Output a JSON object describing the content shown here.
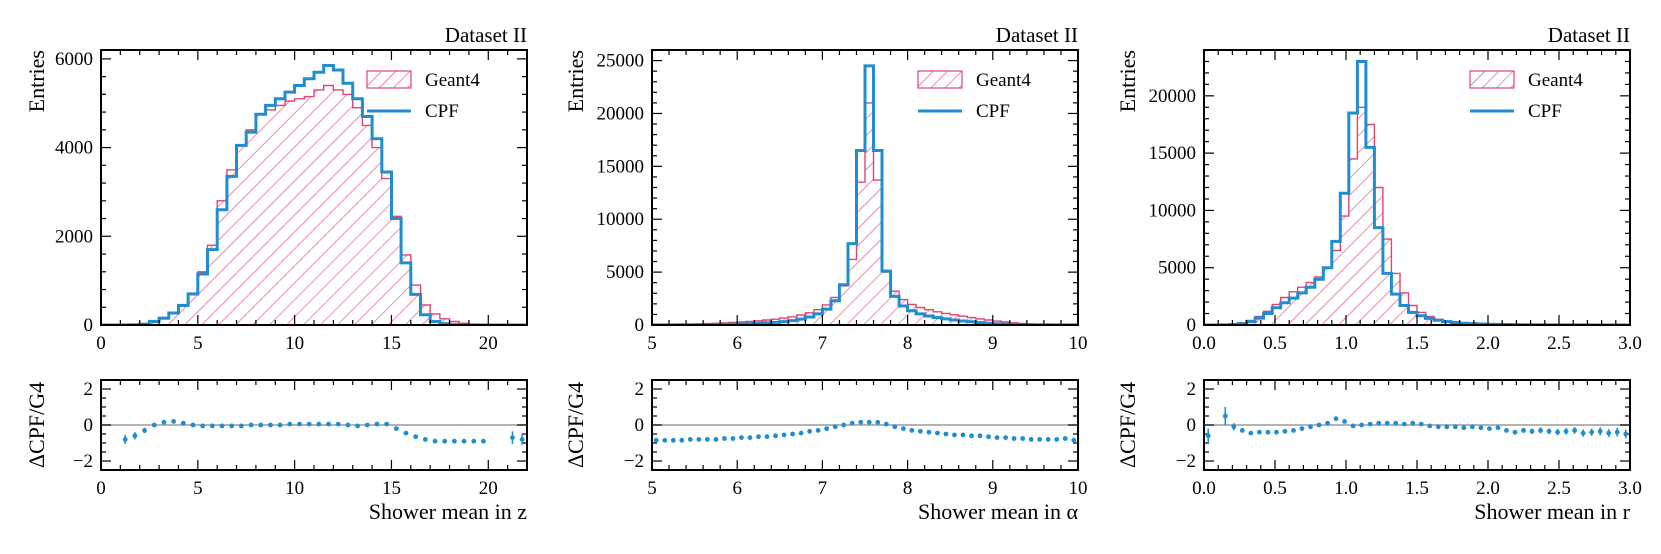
{
  "figure": {
    "legend_geant4": "Geant4",
    "legend_cpf": "CPF",
    "colors": {
      "geant4": "#e0456e",
      "cpf": "#1f8dd0",
      "reference_line": "#9a9a9a",
      "axes": "#000000"
    }
  },
  "chart_data": [
    {
      "type": "histogram-with-ratio",
      "title": "Dataset II",
      "xlabel": "Shower mean in z",
      "ylabel": "Entries",
      "ratio_ylabel": "ΔCPF/G4",
      "xlim": [
        0,
        22
      ],
      "ylim": [
        0,
        6200
      ],
      "ratio_ylim": [
        -2.5,
        2.5
      ],
      "xticks": [
        0,
        5,
        10,
        15,
        20
      ],
      "xtick_labels": [
        "0",
        "5",
        "10",
        "15",
        "20"
      ],
      "yticks": [
        0,
        2000,
        4000,
        6000
      ],
      "ytick_labels": [
        "0",
        "2000",
        "4000",
        "6000"
      ],
      "ratio_yticks": [
        -2,
        0,
        2
      ],
      "ratio_ytick_labels": [
        "−2",
        "0",
        "2"
      ],
      "bin_edges": [
        0,
        0.5,
        1,
        1.5,
        2,
        2.5,
        3,
        3.5,
        4,
        4.5,
        5,
        5.5,
        6,
        6.5,
        7,
        7.5,
        8,
        8.5,
        9,
        9.5,
        10,
        10.5,
        11,
        11.5,
        12,
        12.5,
        13,
        13.5,
        14,
        14.5,
        15,
        15.5,
        16,
        16.5,
        17,
        17.5,
        18,
        18.5,
        19,
        19.5,
        20,
        20.5,
        21,
        21.5,
        22
      ],
      "geant4": [
        0,
        0,
        5,
        10,
        30,
        100,
        170,
        280,
        460,
        720,
        1200,
        1800,
        2800,
        3500,
        4050,
        4400,
        4750,
        4850,
        4950,
        5050,
        5100,
        5150,
        5300,
        5400,
        5300,
        5200,
        4900,
        4500,
        4000,
        3300,
        2450,
        1580,
        900,
        450,
        250,
        140,
        80,
        40,
        20,
        8,
        3,
        0,
        0,
        0
      ],
      "cpf": [
        0,
        0,
        0,
        5,
        20,
        80,
        150,
        270,
        440,
        700,
        1150,
        1700,
        2600,
        3350,
        4050,
        4350,
        4750,
        4950,
        5100,
        5250,
        5400,
        5550,
        5700,
        5850,
        5750,
        5450,
        5100,
        4700,
        4200,
        3450,
        2400,
        1400,
        690,
        230,
        80,
        30,
        10,
        3,
        1,
        0,
        0,
        0,
        0,
        0
      ],
      "ratio": {
        "x": [
          1.25,
          1.75,
          2.25,
          2.75,
          3.25,
          3.75,
          4.25,
          4.75,
          5.25,
          5.75,
          6.25,
          6.75,
          7.25,
          7.75,
          8.25,
          8.75,
          9.25,
          9.75,
          10.25,
          10.75,
          11.25,
          11.75,
          12.25,
          12.75,
          13.25,
          13.75,
          14.25,
          14.75,
          15.25,
          15.75,
          16.25,
          16.75,
          17.25,
          17.75,
          18.25,
          18.75,
          19.25,
          19.75,
          21.25,
          21.75
        ],
        "y": [
          -0.8,
          -0.6,
          -0.3,
          0.0,
          0.15,
          0.2,
          0.1,
          0.0,
          -0.05,
          -0.05,
          -0.05,
          -0.05,
          -0.05,
          0.0,
          0.0,
          0.0,
          0.0,
          0.05,
          0.05,
          0.05,
          0.05,
          0.05,
          0.05,
          0.0,
          -0.05,
          0.0,
          0.05,
          0.05,
          -0.2,
          -0.45,
          -0.65,
          -0.8,
          -0.9,
          -0.9,
          -0.9,
          -0.9,
          -0.9,
          -0.9,
          -0.7,
          -0.8
        ],
        "err": [
          0.25,
          0.2,
          0.15,
          0.1,
          0.08,
          0.06,
          0.05,
          0.04,
          0.03,
          0.03,
          0.03,
          0.03,
          0.03,
          0.03,
          0.03,
          0.03,
          0.03,
          0.03,
          0.03,
          0.03,
          0.03,
          0.03,
          0.03,
          0.03,
          0.03,
          0.03,
          0.03,
          0.03,
          0.04,
          0.05,
          0.06,
          0.07,
          0.08,
          0.08,
          0.09,
          0.1,
          0.1,
          0.1,
          0.35,
          0.3
        ]
      }
    },
    {
      "type": "histogram-with-ratio",
      "title": "Dataset II",
      "xlabel": "Shower mean in α",
      "ylabel": "Entries",
      "ratio_ylabel": "ΔCPF/G4",
      "xlim": [
        5,
        10
      ],
      "ylim": [
        0,
        26000
      ],
      "ratio_ylim": [
        -2.5,
        2.5
      ],
      "xticks": [
        5,
        6,
        7,
        8,
        9,
        10
      ],
      "xtick_labels": [
        "5",
        "6",
        "7",
        "8",
        "9",
        "10"
      ],
      "yticks": [
        0,
        5000,
        10000,
        15000,
        20000,
        25000
      ],
      "ytick_labels": [
        "0",
        "5000",
        "10000",
        "15000",
        "20000",
        "25000"
      ],
      "ratio_yticks": [
        -2,
        0,
        2
      ],
      "ratio_ytick_labels": [
        "−2",
        "0",
        "2"
      ],
      "bin_edges": [
        5.0,
        5.1,
        5.2,
        5.3,
        5.4,
        5.5,
        5.6,
        5.7,
        5.8,
        5.9,
        6.0,
        6.1,
        6.2,
        6.3,
        6.4,
        6.5,
        6.6,
        6.7,
        6.8,
        6.9,
        7.0,
        7.1,
        7.2,
        7.3,
        7.4,
        7.5,
        7.6,
        7.7,
        7.8,
        7.9,
        8.0,
        8.1,
        8.2,
        8.3,
        8.4,
        8.5,
        8.6,
        8.7,
        8.8,
        8.9,
        9.0,
        9.1,
        9.2,
        9.3,
        9.4,
        9.5,
        9.6,
        9.7,
        9.8,
        9.9,
        10.0
      ],
      "geant4": [
        20,
        30,
        40,
        60,
        80,
        100,
        130,
        160,
        200,
        240,
        290,
        340,
        400,
        470,
        550,
        650,
        780,
        950,
        1150,
        1450,
        1900,
        2600,
        3700,
        6200,
        13500,
        21000,
        13700,
        5000,
        3200,
        2400,
        1950,
        1650,
        1450,
        1250,
        1100,
        960,
        830,
        700,
        580,
        470,
        370,
        280,
        210,
        150,
        100,
        70,
        45,
        30,
        20,
        10
      ],
      "cpf": [
        5,
        5,
        10,
        15,
        20,
        25,
        35,
        45,
        60,
        80,
        100,
        130,
        160,
        200,
        250,
        320,
        420,
        560,
        760,
        1050,
        1500,
        2300,
        3800,
        7700,
        16500,
        24500,
        16500,
        5100,
        2700,
        1800,
        1350,
        1050,
        850,
        700,
        580,
        470,
        380,
        300,
        230,
        170,
        120,
        85,
        60,
        40,
        30,
        20,
        15,
        10,
        8,
        5
      ],
      "ratio": {
        "x": [
          5.05,
          5.15,
          5.25,
          5.35,
          5.45,
          5.55,
          5.65,
          5.75,
          5.85,
          5.95,
          6.05,
          6.15,
          6.25,
          6.35,
          6.45,
          6.55,
          6.65,
          6.75,
          6.85,
          6.95,
          7.05,
          7.15,
          7.25,
          7.35,
          7.45,
          7.55,
          7.65,
          7.75,
          7.85,
          7.95,
          8.05,
          8.15,
          8.25,
          8.35,
          8.45,
          8.55,
          8.65,
          8.75,
          8.85,
          8.95,
          9.05,
          9.15,
          9.25,
          9.35,
          9.45,
          9.55,
          9.65,
          9.75,
          9.85,
          9.95
        ],
        "y": [
          -0.85,
          -0.85,
          -0.85,
          -0.85,
          -0.8,
          -0.8,
          -0.8,
          -0.8,
          -0.75,
          -0.75,
          -0.7,
          -0.7,
          -0.65,
          -0.65,
          -0.6,
          -0.55,
          -0.5,
          -0.45,
          -0.35,
          -0.3,
          -0.2,
          -0.1,
          0.0,
          0.1,
          0.15,
          0.15,
          0.15,
          0.05,
          -0.1,
          -0.2,
          -0.3,
          -0.35,
          -0.4,
          -0.45,
          -0.5,
          -0.55,
          -0.55,
          -0.6,
          -0.6,
          -0.65,
          -0.7,
          -0.7,
          -0.75,
          -0.75,
          -0.8,
          -0.8,
          -0.8,
          -0.8,
          -0.75,
          -0.85
        ],
        "err": [
          0.1,
          0.1,
          0.08,
          0.08,
          0.07,
          0.07,
          0.06,
          0.06,
          0.05,
          0.05,
          0.05,
          0.04,
          0.04,
          0.04,
          0.03,
          0.03,
          0.03,
          0.03,
          0.03,
          0.02,
          0.02,
          0.02,
          0.02,
          0.02,
          0.02,
          0.02,
          0.02,
          0.02,
          0.02,
          0.02,
          0.02,
          0.03,
          0.03,
          0.03,
          0.03,
          0.03,
          0.04,
          0.04,
          0.04,
          0.05,
          0.05,
          0.06,
          0.06,
          0.07,
          0.08,
          0.09,
          0.1,
          0.1,
          0.12,
          0.15
        ]
      }
    },
    {
      "type": "histogram-with-ratio",
      "title": "Dataset II",
      "xlabel": "Shower mean in r",
      "ylabel": "Entries",
      "ratio_ylabel": "ΔCPF/G4",
      "xlim": [
        0,
        3
      ],
      "ylim": [
        0,
        24000
      ],
      "ratio_ylim": [
        -2.5,
        2.5
      ],
      "xticks": [
        0,
        0.5,
        1.0,
        1.5,
        2.0,
        2.5,
        3.0
      ],
      "xtick_labels": [
        "0.0",
        "0.5",
        "1.0",
        "1.5",
        "2.0",
        "2.5",
        "3.0"
      ],
      "yticks": [
        0,
        5000,
        10000,
        15000,
        20000
      ],
      "ytick_labels": [
        "0",
        "5000",
        "10000",
        "15000",
        "20000"
      ],
      "ratio_yticks": [
        -2,
        0,
        2
      ],
      "ratio_ytick_labels": [
        "−2",
        "0",
        "2"
      ],
      "bin_edges": [
        0,
        0.06,
        0.12,
        0.18,
        0.24,
        0.3,
        0.36,
        0.42,
        0.48,
        0.54,
        0.6,
        0.66,
        0.72,
        0.78,
        0.84,
        0.9,
        0.96,
        1.02,
        1.08,
        1.14,
        1.2,
        1.26,
        1.32,
        1.38,
        1.44,
        1.5,
        1.56,
        1.62,
        1.68,
        1.74,
        1.8,
        1.86,
        1.92,
        1.98,
        2.04,
        2.1,
        2.16,
        2.22,
        2.28,
        2.34,
        2.4,
        2.46,
        2.52,
        2.58,
        2.64,
        2.7,
        2.76,
        2.82,
        2.88,
        2.94,
        3.0
      ],
      "geant4": [
        0,
        0,
        20,
        80,
        200,
        400,
        750,
        1200,
        1800,
        2400,
        2900,
        3300,
        3700,
        4200,
        5000,
        6500,
        9500,
        14500,
        19000,
        17500,
        12000,
        7500,
        4500,
        2800,
        1700,
        1100,
        750,
        500,
        350,
        250,
        180,
        130,
        100,
        80,
        60,
        45,
        35,
        28,
        22,
        18,
        14,
        11,
        9,
        7,
        6,
        5,
        4,
        3,
        2,
        2
      ],
      "cpf": [
        0,
        0,
        10,
        40,
        120,
        300,
        600,
        1000,
        1500,
        1950,
        2350,
        2800,
        3300,
        4000,
        5000,
        7300,
        11500,
        18500,
        23000,
        15500,
        8500,
        4500,
        2700,
        1700,
        1100,
        800,
        580,
        420,
        300,
        220,
        160,
        120,
        90,
        70,
        55,
        42,
        33,
        26,
        20,
        16,
        12,
        10,
        8,
        6,
        5,
        4,
        3,
        3,
        2,
        2
      ],
      "ratio": {
        "x": [
          0.03,
          0.15,
          0.21,
          0.27,
          0.33,
          0.39,
          0.45,
          0.51,
          0.57,
          0.63,
          0.69,
          0.75,
          0.81,
          0.87,
          0.93,
          0.99,
          1.05,
          1.11,
          1.17,
          1.23,
          1.29,
          1.35,
          1.41,
          1.47,
          1.53,
          1.59,
          1.65,
          1.71,
          1.77,
          1.83,
          1.89,
          1.95,
          2.01,
          2.07,
          2.13,
          2.19,
          2.25,
          2.31,
          2.37,
          2.43,
          2.49,
          2.55,
          2.61,
          2.67,
          2.73,
          2.79,
          2.85,
          2.91,
          2.97
        ],
        "y": [
          -0.6,
          0.5,
          -0.1,
          -0.3,
          -0.45,
          -0.4,
          -0.4,
          -0.4,
          -0.35,
          -0.3,
          -0.2,
          -0.1,
          0.0,
          0.1,
          0.35,
          0.2,
          -0.05,
          0.0,
          0.05,
          0.1,
          0.1,
          0.1,
          0.05,
          0.1,
          0.05,
          -0.05,
          -0.1,
          -0.1,
          -0.1,
          -0.15,
          -0.1,
          -0.15,
          -0.2,
          -0.15,
          -0.3,
          -0.4,
          -0.3,
          -0.35,
          -0.3,
          -0.35,
          -0.4,
          -0.35,
          -0.3,
          -0.45,
          -0.4,
          -0.35,
          -0.45,
          -0.4,
          -0.5
        ],
        "err": [
          0.4,
          0.5,
          0.2,
          0.12,
          0.08,
          0.06,
          0.05,
          0.04,
          0.04,
          0.03,
          0.03,
          0.03,
          0.03,
          0.03,
          0.02,
          0.02,
          0.02,
          0.02,
          0.02,
          0.02,
          0.02,
          0.03,
          0.03,
          0.04,
          0.05,
          0.05,
          0.06,
          0.07,
          0.08,
          0.08,
          0.09,
          0.1,
          0.1,
          0.11,
          0.12,
          0.13,
          0.14,
          0.15,
          0.16,
          0.16,
          0.17,
          0.18,
          0.18,
          0.2,
          0.2,
          0.22,
          0.22,
          0.24,
          0.25
        ]
      }
    }
  ]
}
